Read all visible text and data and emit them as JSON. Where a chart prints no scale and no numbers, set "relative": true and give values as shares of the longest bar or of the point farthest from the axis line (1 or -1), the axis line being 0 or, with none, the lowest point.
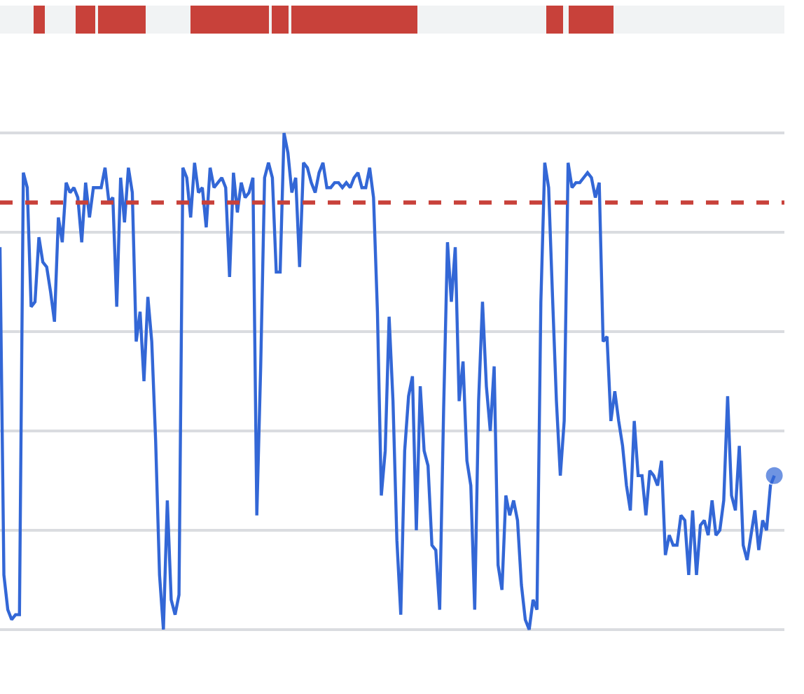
{
  "chart_data": {
    "type": "line",
    "relative": true,
    "grid": "y",
    "categories": [
      null,
      null,
      null,
      null,
      null,
      null,
      null,
      null,
      null,
      null,
      null,
      null,
      null,
      null,
      null,
      null,
      null,
      null,
      null,
      null,
      null,
      null,
      null,
      null,
      null,
      null,
      null,
      null,
      null,
      null,
      null,
      null,
      null,
      null,
      null,
      null,
      null,
      null,
      null,
      null,
      null,
      null,
      null,
      null,
      null,
      null,
      null,
      null,
      null,
      null,
      null,
      null,
      null,
      null,
      null,
      null,
      null,
      null,
      null,
      null,
      null,
      null,
      null,
      null,
      null,
      null,
      null,
      null,
      null,
      null,
      null,
      null,
      null,
      null,
      null,
      null,
      null,
      null,
      null,
      null,
      null,
      null,
      null,
      null,
      null,
      null,
      null,
      null,
      null,
      null,
      null,
      null,
      null,
      null,
      null,
      null,
      null,
      null,
      null,
      null,
      null,
      null,
      null,
      null,
      null,
      null,
      null,
      null,
      null,
      null,
      null,
      null,
      null,
      null,
      null,
      null,
      null,
      null,
      null,
      null,
      null,
      null,
      null,
      null,
      null,
      null,
      null,
      null,
      null,
      null,
      null,
      null,
      null,
      null,
      null,
      null,
      null,
      null,
      null,
      null,
      null,
      null,
      null,
      null,
      null,
      null,
      null,
      null,
      null,
      null,
      null,
      null,
      null,
      null,
      null,
      null,
      null,
      null,
      null,
      null,
      null,
      null,
      null,
      null,
      null,
      null,
      null,
      null,
      null,
      null,
      null,
      null,
      null,
      null,
      null,
      null,
      null,
      null,
      null,
      null,
      null,
      null,
      null,
      null,
      null,
      null,
      null,
      null,
      null,
      null,
      null,
      null,
      null,
      null,
      null,
      null,
      null,
      null,
      null,
      null
    ],
    "series": [
      {
        "color": "#3367d6",
        "values": [
          0.77,
          0.11,
          0.04,
          0.02,
          0.03,
          0.03,
          0.92,
          0.89,
          0.65,
          0.66,
          0.79,
          0.74,
          0.73,
          0.68,
          0.62,
          0.83,
          0.78,
          0.9,
          0.88,
          0.89,
          0.87,
          0.78,
          0.9,
          0.83,
          0.89,
          0.89,
          0.89,
          0.93,
          0.86,
          0.87,
          0.65,
          0.91,
          0.82,
          0.93,
          0.88,
          0.58,
          0.64,
          0.5,
          0.67,
          0.58,
          0.38,
          0.11,
          0,
          0.26,
          0.06,
          0.03,
          0.07,
          0.93,
          0.91,
          0.83,
          0.94,
          0.88,
          0.89,
          0.81,
          0.93,
          0.89,
          0.9,
          0.91,
          0.89,
          0.71,
          0.92,
          0.84,
          0.9,
          0.87,
          0.88,
          0.91,
          0.23,
          0.53,
          0.91,
          0.94,
          0.91,
          0.72,
          0.72,
          1,
          0.96,
          0.88,
          0.91,
          0.73,
          0.94,
          0.93,
          0.9,
          0.88,
          0.92,
          0.94,
          0.89,
          0.89,
          0.9,
          0.9,
          0.89,
          0.9,
          0.89,
          0.91,
          0.92,
          0.89,
          0.89,
          0.93,
          0.87,
          0.64,
          0.27,
          0.36,
          0.63,
          0.46,
          0.18,
          0.03,
          0.36,
          0.47,
          0.51,
          0.2,
          0.49,
          0.36,
          0.33,
          0.17,
          0.16,
          0.04,
          0.44,
          0.78,
          0.66,
          0.77,
          0.46,
          0.54,
          0.34,
          0.29,
          0.04,
          0.46,
          0.66,
          0.49,
          0.4,
          0.53,
          0.13,
          0.08,
          0.27,
          0.23,
          0.26,
          0.22,
          0.09,
          0.02,
          0,
          0.06,
          0.04,
          0.66,
          0.94,
          0.89,
          0.67,
          0.46,
          0.31,
          0.42,
          0.94,
          0.89,
          0.9,
          0.9,
          0.91,
          0.92,
          0.91,
          0.87,
          0.9,
          0.58,
          0.59,
          0.42,
          0.48,
          0.42,
          0.37,
          0.29,
          0.24,
          0.42,
          0.31,
          0.31,
          0.23,
          0.32,
          0.31,
          0.29,
          0.34,
          0.15,
          0.19,
          0.17,
          0.17,
          0.23,
          0.22,
          0.11,
          0.24,
          0.11,
          0.21,
          0.22,
          0.19,
          0.26,
          0.19,
          0.2,
          0.26,
          0.47,
          0.27,
          0.24,
          0.37,
          0.17,
          0.14,
          0.19,
          0.24,
          0.16,
          0.22,
          0.2,
          0.29,
          0.31
        ]
      }
    ],
    "ref_lines": [
      {
        "axis": "y",
        "value": 0.86,
        "color": "#c8413a",
        "line_style": "dashed"
      }
    ]
  }
}
